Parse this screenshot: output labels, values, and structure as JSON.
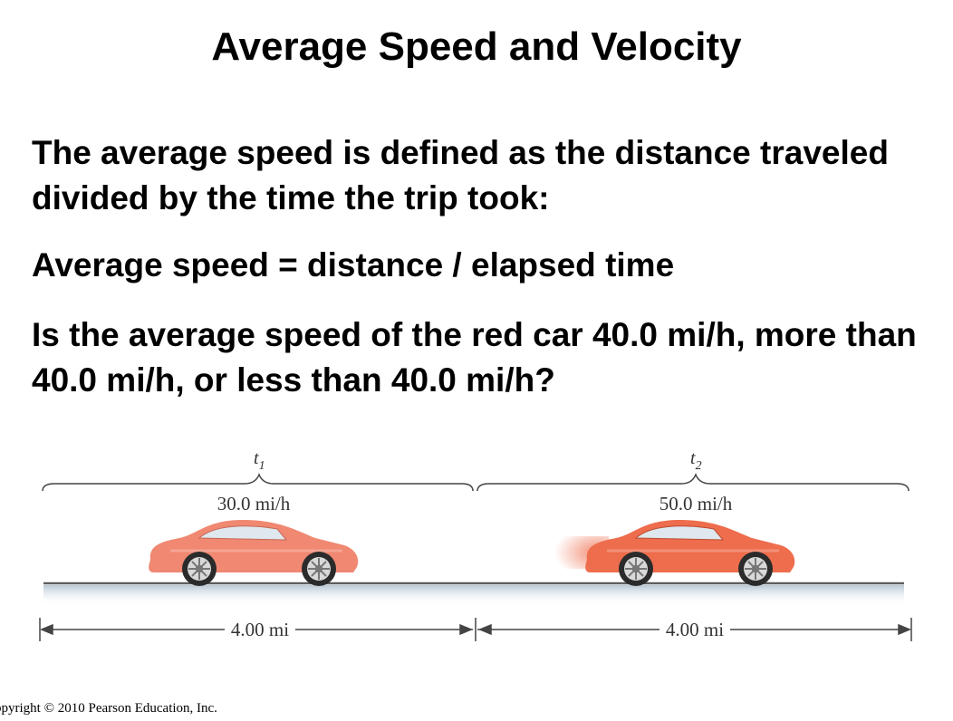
{
  "slide": {
    "title": "Average Speed and Velocity",
    "paragraphs": [
      "The average speed is defined as the distance traveled divided by the time the trip took:",
      "Average speed = distance / elapsed time",
      "Is the average speed of the red car 40.0 mi/h, more than 40.0 mi/h, or less than 40.0 mi/h?"
    ]
  },
  "figure": {
    "segments": [
      {
        "time_label": "t",
        "time_sub": "1",
        "speed": "30.0 mi/h",
        "distance": "4.00 mi",
        "car_color": "#f08872"
      },
      {
        "time_label": "t",
        "time_sub": "2",
        "speed": "50.0 mi/h",
        "distance": "4.00 mi",
        "car_color": "#ee6d4d"
      }
    ]
  },
  "footer": {
    "copyright": "opyright © 2010 Pearson Education, Inc."
  }
}
